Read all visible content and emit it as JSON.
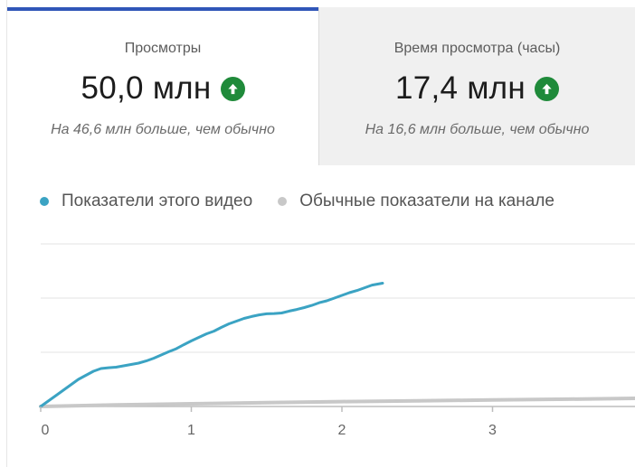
{
  "tabs": [
    {
      "label": "Просмотры",
      "value": "50,0 млн",
      "note": "На 46,6 млн больше, чем обычно",
      "trend_icon": "arrow-up-circle-icon"
    },
    {
      "label": "Время просмотра (часы)",
      "value": "17,4 млн",
      "note": "На 16,6 млн больше, чем обычно",
      "trend_icon": "arrow-up-circle-icon"
    }
  ],
  "colors": {
    "accent": "#3056b8",
    "trend_up": "#1f8a3a",
    "this_video": "#3ba3c3",
    "typical": "#c8c8c8"
  },
  "chart_data": {
    "type": "line",
    "x_ticks": [
      "0",
      "1",
      "2",
      "3"
    ],
    "xlim": [
      0,
      3.95
    ],
    "ylim": [
      0,
      60
    ],
    "grid": true,
    "legend": "top-left",
    "series": [
      {
        "name": "Показатели этого видео",
        "color": "#3ba3c3",
        "x": [
          0,
          0.05,
          0.1,
          0.15,
          0.2,
          0.25,
          0.3,
          0.35,
          0.4,
          0.45,
          0.5,
          0.55,
          0.6,
          0.65,
          0.7,
          0.75,
          0.8,
          0.85,
          0.9,
          0.95,
          1.0,
          1.05,
          1.1,
          1.15,
          1.2,
          1.25,
          1.3,
          1.35,
          1.4,
          1.45,
          1.5,
          1.55,
          1.6,
          1.65,
          1.7,
          1.75,
          1.8,
          1.85,
          1.9,
          1.95,
          2.0,
          2.05,
          2.1,
          2.15,
          2.2,
          2.27
        ],
        "y": [
          0,
          2,
          4,
          6,
          8,
          10,
          11.5,
          13,
          14,
          14.3,
          14.5,
          15,
          15.5,
          16,
          16.8,
          17.8,
          19,
          20.2,
          21.3,
          22.8,
          24.2,
          25.5,
          26.8,
          27.8,
          29.2,
          30.5,
          31.5,
          32.5,
          33.2,
          33.8,
          34.2,
          34.3,
          34.5,
          35.2,
          35.8,
          36.5,
          37.3,
          38.3,
          39,
          40,
          41,
          42,
          42.8,
          43.8,
          44.8,
          45.5
        ]
      },
      {
        "name": "Обычные показатели на канале",
        "color": "#c8c8c8",
        "x": [
          0,
          0.5,
          1.0,
          1.5,
          2.0,
          2.5,
          3.0,
          3.5,
          3.95
        ],
        "y": [
          0,
          0.6,
          1.0,
          1.4,
          1.8,
          2.1,
          2.4,
          2.7,
          3.0
        ]
      }
    ]
  }
}
